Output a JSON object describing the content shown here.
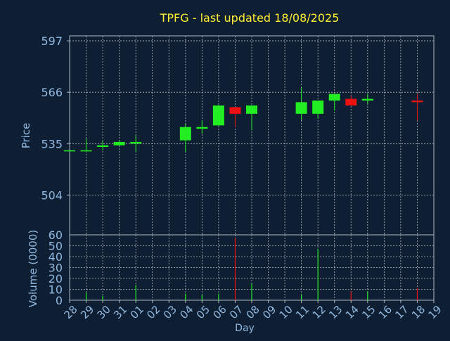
{
  "chart_data": [
    {
      "type": "candlestick",
      "title": "TPFG - last updated 18/08/2025",
      "ylabel": "Price",
      "ylim": [
        480,
        600
      ],
      "yticks": [
        504,
        535,
        566,
        597
      ],
      "grid": true,
      "days": [
        "28",
        "29",
        "30",
        "31",
        "01",
        "02",
        "03",
        "04",
        "05",
        "06",
        "07",
        "08",
        "09",
        "10",
        "11",
        "12",
        "13",
        "14",
        "15",
        "16",
        "17",
        "18",
        "19"
      ],
      "candles": [
        {
          "day": "28",
          "open": 531,
          "close": 531,
          "high": 531,
          "low": 531,
          "color": "#22ee22"
        },
        {
          "day": "29",
          "open": 531,
          "close": 531,
          "high": 538,
          "low": 530,
          "color": "#22ee22"
        },
        {
          "day": "30",
          "open": 533,
          "close": 534,
          "high": 537,
          "low": 531,
          "color": "#22ee22"
        },
        {
          "day": "31",
          "open": 534,
          "close": 536,
          "high": 537,
          "low": 534,
          "color": "#22ee22"
        },
        {
          "day": "01",
          "open": 535,
          "close": 536,
          "high": 540,
          "low": 530,
          "color": "#22ee22"
        },
        {
          "day": "04",
          "open": 537,
          "close": 545,
          "high": 547,
          "low": 530,
          "color": "#22ee22"
        },
        {
          "day": "05",
          "open": 544,
          "close": 545,
          "high": 549,
          "low": 541,
          "color": "#22ee22"
        },
        {
          "day": "06",
          "open": 546,
          "close": 558,
          "high": 558,
          "low": 546,
          "color": "#22ee22"
        },
        {
          "day": "07",
          "open": 557,
          "close": 553,
          "high": 557,
          "low": 545,
          "color": "#ee1111"
        },
        {
          "day": "08",
          "open": 553,
          "close": 558,
          "high": 558,
          "low": 543,
          "color": "#22ee22"
        },
        {
          "day": "11",
          "open": 553,
          "close": 560,
          "high": 569,
          "low": 549,
          "color": "#22ee22"
        },
        {
          "day": "12",
          "open": 553,
          "close": 561,
          "high": 561,
          "low": 550,
          "color": "#22ee22"
        },
        {
          "day": "13",
          "open": 561,
          "close": 565,
          "high": 565,
          "low": 555,
          "color": "#22ee22"
        },
        {
          "day": "14",
          "open": 562,
          "close": 558,
          "high": 564,
          "low": 558,
          "color": "#ee1111"
        },
        {
          "day": "15",
          "open": 561,
          "close": 562,
          "high": 565,
          "low": 559,
          "color": "#22ee22"
        },
        {
          "day": "18",
          "open": 561,
          "close": 560,
          "high": 565,
          "low": 549,
          "color": "#ee1111"
        }
      ]
    },
    {
      "type": "bar",
      "ylabel": "Volume (0000)",
      "xlabel": "Day",
      "ylim": [
        0,
        60
      ],
      "yticks": [
        0,
        10,
        20,
        30,
        40,
        50,
        60
      ],
      "grid": true,
      "categories": [
        "29",
        "30",
        "01",
        "04",
        "05",
        "06",
        "07",
        "08",
        "11",
        "12",
        "14",
        "15",
        "18"
      ],
      "values": [
        7,
        4,
        14,
        6,
        5,
        6,
        57,
        15,
        5,
        47,
        8,
        8,
        11
      ],
      "colors": [
        "#22ee22",
        "#22ee22",
        "#22ee22",
        "#22ee22",
        "#22ee22",
        "#22ee22",
        "#ee1111",
        "#22ee22",
        "#22ee22",
        "#22ee22",
        "#ee1111",
        "#22ee22",
        "#ee1111"
      ]
    }
  ],
  "colors": {
    "background": "#0f1f33",
    "title": "#ffee33",
    "axis_text": "#8fb8e0",
    "grid": "#b0b8c0",
    "up": "#22ee22",
    "down": "#ee1111"
  }
}
